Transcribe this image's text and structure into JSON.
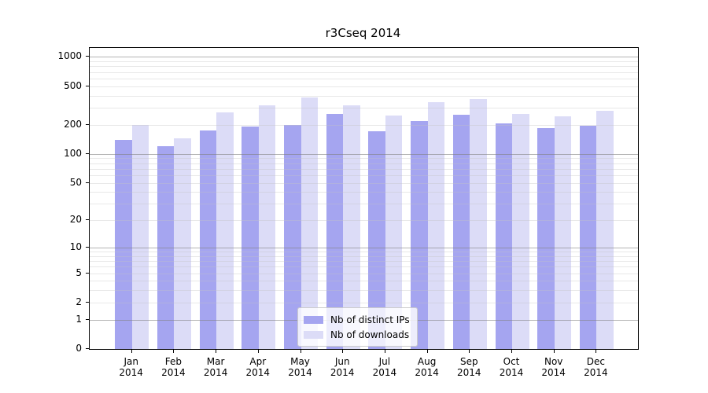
{
  "figure": {
    "title": "r3Cseq 2014"
  },
  "chart_data": {
    "type": "bar",
    "title": "r3Cseq 2014",
    "categories": [
      "Jan",
      "Feb",
      "Mar",
      "Apr",
      "May",
      "Jun",
      "Jul",
      "Aug",
      "Sep",
      "Oct",
      "Nov",
      "Dec"
    ],
    "category_sublabel": "2014",
    "series": [
      {
        "name": "Nb of distinct IPs",
        "color": "#a5a5f0",
        "values": [
          140,
          120,
          175,
          190,
          200,
          260,
          170,
          220,
          255,
          205,
          185,
          195
        ]
      },
      {
        "name": "Nb of downloads",
        "color": "#dcdcf7",
        "values": [
          200,
          145,
          270,
          315,
          380,
          320,
          250,
          340,
          365,
          260,
          245,
          280
        ]
      }
    ],
    "xlabel": "",
    "ylabel": "",
    "y_scale": "log1p",
    "y_ticks": [
      0,
      1,
      2,
      5,
      10,
      20,
      50,
      100,
      200,
      500,
      1000
    ],
    "y_major_gridlines": [
      1,
      10,
      100,
      1000
    ],
    "y_minor_gridlines": [
      2,
      3,
      4,
      5,
      6,
      7,
      8,
      9,
      20,
      30,
      40,
      50,
      60,
      70,
      80,
      90,
      200,
      300,
      400,
      500,
      600,
      700,
      800,
      900
    ],
    "ylim": [
      0,
      1230
    ],
    "grid": true,
    "legend_position": "inside-bottom-center"
  },
  "colors": {
    "bar_ips": "#a5a5f0",
    "bar_downloads": "#dcdcf7",
    "grid_major": "#aeaeae",
    "grid_minor": "#e8e8e8",
    "axis": "#000000",
    "legend_border": "#cccccc"
  }
}
